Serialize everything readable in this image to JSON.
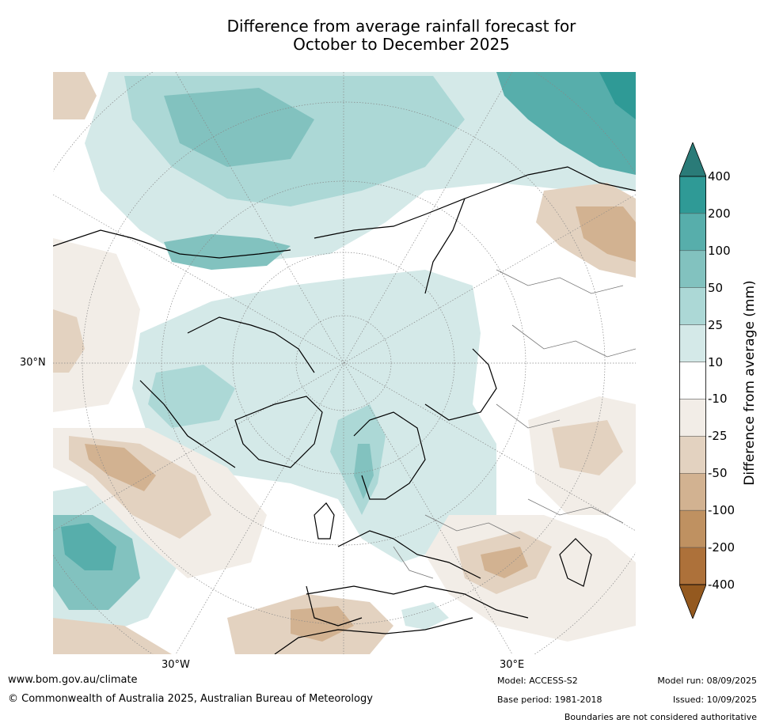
{
  "title": {
    "line1": "Difference from average rainfall forecast for",
    "line2": "October to December 2025"
  },
  "map": {
    "projection": "north polar stereographic",
    "region": "Northern Hemisphere (Atlantic/Europe/Arctic sector)",
    "graticule_labels": {
      "left": "30°N",
      "bottom_left": "30°W",
      "bottom_right": "30°E"
    }
  },
  "legend": {
    "title": "Difference from average (mm)",
    "ticks": [
      "400",
      "200",
      "100",
      "50",
      "25",
      "10",
      "-10",
      "-25",
      "-50",
      "-100",
      "-200",
      "-400"
    ],
    "bands": [
      {
        "range": "> 400",
        "color": "#2a7b78"
      },
      {
        "range": "200 to 400",
        "color": "#2f9a96"
      },
      {
        "range": "100 to 200",
        "color": "#57aeab"
      },
      {
        "range": "50 to 100",
        "color": "#82c2bf"
      },
      {
        "range": "25 to 50",
        "color": "#acd8d6"
      },
      {
        "range": "10 to 25",
        "color": "#d4e9e8"
      },
      {
        "range": "-10 to 10",
        "color": "#ffffff"
      },
      {
        "range": "-25 to -10",
        "color": "#f2ede7"
      },
      {
        "range": "-50 to -25",
        "color": "#e3d2c0"
      },
      {
        "range": "-100 to -50",
        "color": "#d2b291"
      },
      {
        "range": "-200 to -100",
        "color": "#bf9161"
      },
      {
        "range": "-400 to -200",
        "color": "#ad713a"
      },
      {
        "range": "< -400",
        "color": "#94591f"
      }
    ]
  },
  "footer": {
    "website": "www.bom.gov.au/climate",
    "copyright": "© Commonwealth of Australia 2025, Australian Bureau of Meteorology",
    "model": "Model: ACCESS-S2",
    "base_period": "Base period: 1981-2018",
    "model_run": "Model run: 08/09/2025",
    "issued": "Issued: 10/09/2025",
    "disclaimer": "Boundaries are not considered authoritative"
  }
}
